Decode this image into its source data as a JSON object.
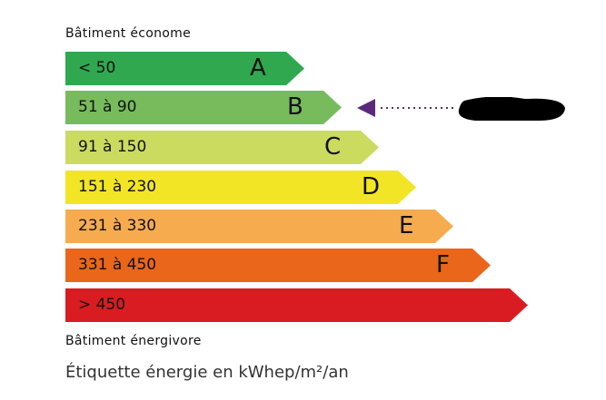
{
  "top_caption": "Bâtiment économe",
  "bottom_caption": "Bâtiment énergivore",
  "footer": "Étiquette énergie en kWhep/m²/an",
  "classes": [
    {
      "range": "< 50",
      "letter": "A",
      "color": "#2fa84f"
    },
    {
      "range": "51 à 90",
      "letter": "B",
      "color": "#77bb5c"
    },
    {
      "range": "91 à 150",
      "letter": "C",
      "color": "#cbdb5f"
    },
    {
      "range": "151 à 230",
      "letter": "D",
      "color": "#f2e525"
    },
    {
      "range": "231 à 330",
      "letter": "E",
      "color": "#f6ab4f"
    },
    {
      "range": "331 à 450",
      "letter": "F",
      "color": "#e9661a"
    },
    {
      "range": "> 450",
      "letter": "",
      "color": "#d91c22"
    }
  ],
  "indicator": {
    "class": "B",
    "color": "#5b2a7d",
    "icon": "arrow-left-dotted-icon",
    "value_redacted": true
  }
}
